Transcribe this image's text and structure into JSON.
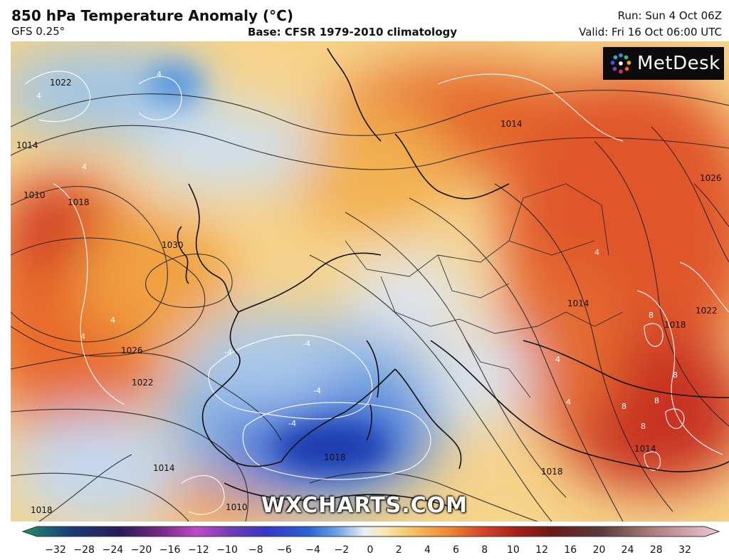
{
  "header": {
    "title": "850 hPa Temperature Anomaly (°C)",
    "model": "GFS 0.25°",
    "base": "Base: CFSR 1979-2010 climatology",
    "run": "Run: Sun 4 Oct 06Z",
    "valid": "Valid: Fri 16 Oct 06:00 UTC"
  },
  "logo": {
    "text": "MetDesk"
  },
  "watermark": "WXCHARTS.COM",
  "legend": {
    "ticks": [
      "−32",
      "−28",
      "−24",
      "−20",
      "−16",
      "−12",
      "−10",
      "−8",
      "−6",
      "−4",
      "−2",
      "0",
      "2",
      "4",
      "6",
      "8",
      "10",
      "12",
      "16",
      "20",
      "24",
      "28",
      "32"
    ],
    "colors": [
      "#1f8f6a",
      "#1a3a78",
      "#14285a",
      "#5a1a6e",
      "#8a2a9a",
      "#c04ac8",
      "#6e3cb8",
      "#3438c8",
      "#2a62d6",
      "#5a9ae0",
      "#a8c8ec",
      "#f2f2f2",
      "#f8e4a2",
      "#f7c060",
      "#f09a3a",
      "#e4642a",
      "#c8341e",
      "#8c1a16",
      "#6a2a2a",
      "#9a6a6a",
      "#c89a9a",
      "#e8c0c8",
      "#f6dce4"
    ]
  },
  "map": {
    "isobar_labels": [
      "1022",
      "1014",
      "1010",
      "1018",
      "1030",
      "1026",
      "1022",
      "1014",
      "1018",
      "1026",
      "1014",
      "1018",
      "1022",
      "1014",
      "1018",
      "1018",
      "1014",
      "1010"
    ],
    "anomaly_labels": [
      "4",
      "4",
      "4",
      "4",
      "4",
      "-4",
      "-4",
      "4",
      "4",
      "8",
      "8",
      "8",
      "8",
      "-4",
      "-4",
      "4",
      "8"
    ]
  }
}
